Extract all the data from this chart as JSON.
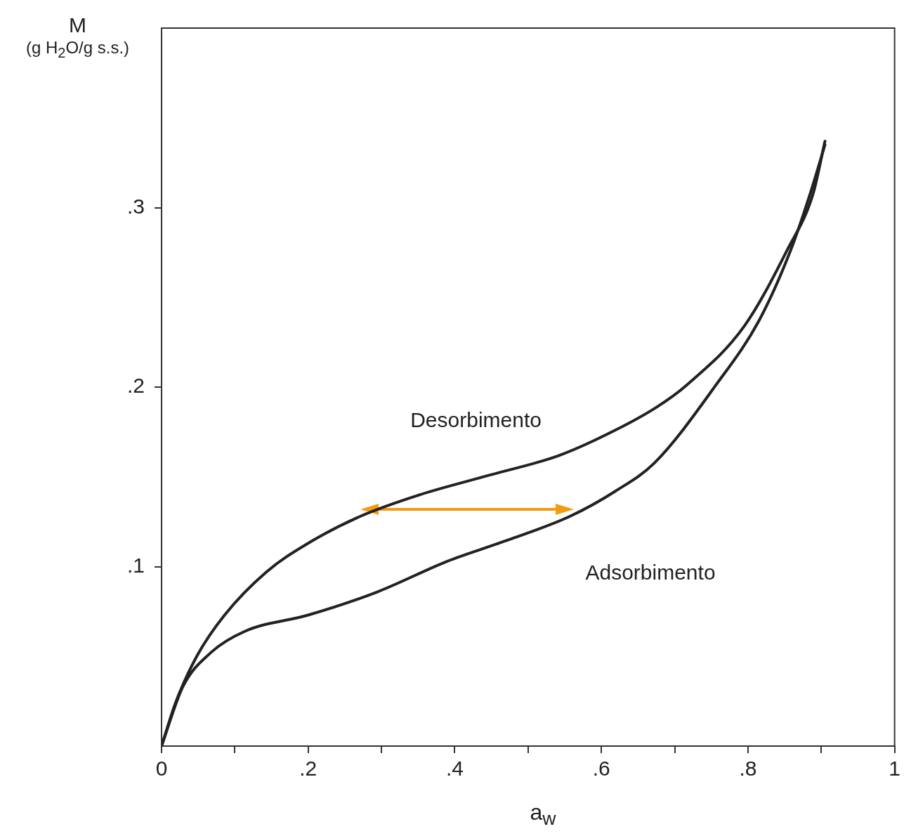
{
  "chart_data": {
    "type": "line",
    "xlabel": "a$_{w}$",
    "ylabel": "M\n(g H$_{2}$O/g s.s.)",
    "xlim": [
      0,
      1
    ],
    "ylim": [
      0,
      0.4
    ],
    "xticks": [
      0,
      {
        "value": 0.1,
        "label": null
      },
      ".2",
      {
        "value": 0.3,
        "label": null
      },
      {
        "value": 0.4,
        "label": ".4"
      },
      {
        "value": 0.5,
        "label": null
      },
      {
        "value": 0.6,
        "label": ".6"
      },
      {
        "value": 0.7,
        "label": null
      },
      {
        "value": 0.8,
        "label": ".8"
      },
      {
        "value": 0.9,
        "label": null
      },
      1
    ],
    "yticks": [
      {
        "value": 0.1,
        "label": ".1"
      },
      {
        "value": 0.2,
        "label": ".2"
      },
      {
        "value": 0.3,
        "label": ".3"
      }
    ],
    "grid": false,
    "marker": "none",
    "line_style": "solid",
    "legend": false,
    "series": [
      {
        "name": "Desorbimento",
        "color": "#222222",
        "x": [
          0,
          0.019,
          0.048,
          0.086,
          0.143,
          0.2,
          0.271,
          0.352,
          0.448,
          0.543,
          0.619,
          0.676,
          0.716,
          0.795,
          0.853,
          0.889,
          0.905
        ],
        "values": [
          0,
          0.024,
          0.05,
          0.073,
          0.097,
          0.113,
          0.128,
          0.14,
          0.151,
          0.162,
          0.176,
          0.189,
          0.201,
          0.234,
          0.276,
          0.308,
          0.337
        ]
      },
      {
        "name": "Adsorbimento",
        "color": "#222222",
        "x": [
          0,
          0.029,
          0.067,
          0.114,
          0.2,
          0.295,
          0.39,
          0.467,
          0.557,
          0.619,
          0.673,
          0.756,
          0.815,
          0.858,
          0.885,
          0.905
        ],
        "values": [
          0,
          0.033,
          0.052,
          0.064,
          0.073,
          0.086,
          0.103,
          0.114,
          0.128,
          0.142,
          0.158,
          0.201,
          0.237,
          0.276,
          0.308,
          0.335
        ]
      }
    ]
  }
}
